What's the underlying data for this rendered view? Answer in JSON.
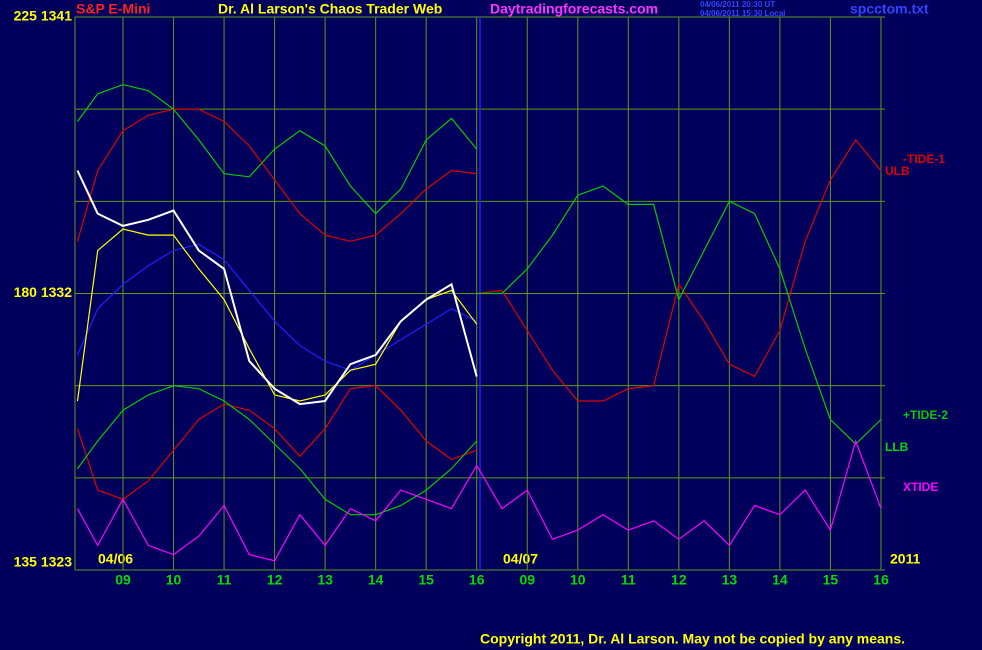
{
  "chart_data": {
    "type": "line",
    "symbol": "S&P E-Mini",
    "title": "Dr. Al Larson's Chaos Trader Web",
    "site": "Daytradingforecasts.com",
    "timestamps": [
      "04/06/2011 20:30 UT",
      "04/06/2011 15:30 Local"
    ],
    "file": "spcctom.txt",
    "copyright": "Copyright 2011, Dr. Al Larson. May not be copied by any means.",
    "annotations": [
      "04/06",
      "04/07",
      "2011"
    ],
    "background": "#00005c",
    "grid": true,
    "grid_color": "#5e9a14",
    "xlim": [
      0.05,
      16.08
    ],
    "ylim": [
      1323,
      1341
    ],
    "xticks": [
      {
        "value": 1,
        "label": "09"
      },
      {
        "value": 2,
        "label": "10"
      },
      {
        "value": 3,
        "label": "11"
      },
      {
        "value": 4,
        "label": "12"
      },
      {
        "value": 5,
        "label": "13"
      },
      {
        "value": 6,
        "label": "14"
      },
      {
        "value": 7,
        "label": "15"
      },
      {
        "value": 8,
        "label": "16"
      },
      {
        "value": 9,
        "label": "09"
      },
      {
        "value": 10,
        "label": "10"
      },
      {
        "value": 11,
        "label": "11"
      },
      {
        "value": 12,
        "label": "12"
      },
      {
        "value": 13,
        "label": "13"
      },
      {
        "value": 14,
        "label": "14"
      },
      {
        "value": 15,
        "label": "15"
      },
      {
        "value": 16,
        "label": "16"
      }
    ],
    "yticks": [
      {
        "value": 1341,
        "label": "225  1341"
      },
      {
        "value": 1332,
        "label": "180  1332"
      },
      {
        "value": 1323,
        "label": "135  1323"
      }
    ],
    "ygrid": [
      1338,
      1335,
      1329,
      1326
    ],
    "x": [
      0.1,
      0.5,
      1,
      1.5,
      2,
      2.5,
      3,
      3.5,
      4,
      4.5,
      5,
      5.5,
      6,
      6.5,
      7,
      7.5,
      8,
      8.5,
      9,
      9.5,
      10,
      10.5,
      11,
      11.5,
      12,
      12.5,
      13,
      13.5,
      14,
      14.5,
      15,
      15.5,
      16
    ],
    "series": [
      {
        "name": "ULB",
        "color": "#e00000",
        "values": [
          1333.7,
          1336.0,
          1337.3,
          1337.8,
          1338.0,
          1338.0,
          1337.6,
          1336.8,
          1335.7,
          1334.6,
          1333.9,
          1333.7,
          1333.9,
          1334.6,
          1335.4,
          1336.0,
          1335.9,
          null,
          null,
          null,
          null,
          null,
          null,
          null,
          null,
          null,
          null,
          null,
          null,
          null,
          null,
          null,
          null
        ]
      },
      {
        "color": "#e00000",
        "values": [
          1327.6,
          1325.6,
          1325.3,
          1325.9,
          1326.9,
          1327.9,
          1328.4,
          1328.2,
          1327.6,
          1326.7,
          1327.6,
          1328.9,
          1329.0,
          1328.2,
          1327.2,
          1326.6,
          1326.9,
          null,
          null,
          null,
          null,
          null,
          null,
          null,
          null,
          null,
          null,
          null,
          null,
          null,
          null,
          null,
          null
        ]
      },
      {
        "color": "#00cc00",
        "values": [
          1337.6,
          1338.5,
          1338.8,
          1338.6,
          1338.0,
          1337.0,
          1335.9,
          1335.8,
          1336.7,
          1337.3,
          1336.8,
          1335.5,
          1334.6,
          1335.4,
          1337.0,
          1337.7,
          1336.7,
          null,
          null,
          null,
          null,
          null,
          null,
          null,
          null,
          null,
          null,
          null,
          null,
          null,
          null,
          null,
          null
        ]
      },
      {
        "name": "LLB",
        "color": "#00cc00",
        "values": [
          1326.3,
          1327.2,
          1328.2,
          1328.7,
          1329.0,
          1328.9,
          1328.5,
          1327.9,
          1327.1,
          1326.3,
          1325.3,
          1324.8,
          1324.8,
          1325.1,
          1325.6,
          1326.3,
          1327.2,
          null,
          null,
          null,
          null,
          null,
          null,
          null,
          null,
          null,
          null,
          null,
          null,
          null,
          null,
          null,
          null
        ]
      },
      {
        "name": "-TIDE-1",
        "color": "#e00000",
        "values": [
          null,
          null,
          null,
          null,
          null,
          null,
          null,
          null,
          null,
          null,
          null,
          null,
          null,
          null,
          null,
          null,
          1332.0,
          1332.1,
          1330.8,
          1329.5,
          1328.5,
          1328.5,
          1328.9,
          1329.0,
          1332.3,
          1331.1,
          1329.7,
          1329.3,
          1330.8,
          1333.7,
          1335.7,
          1337.0,
          1336.0
        ]
      },
      {
        "name": "+TIDE-2",
        "color": "#00cc00",
        "values": [
          null,
          null,
          null,
          null,
          null,
          null,
          null,
          null,
          null,
          null,
          null,
          null,
          null,
          null,
          null,
          null,
          1332.0,
          1332.0,
          1332.8,
          1333.9,
          1335.2,
          1335.5,
          1334.9,
          1334.9,
          1331.8,
          1333.4,
          1335.0,
          1334.6,
          1332.8,
          1330.2,
          1327.9,
          1327.1,
          1327.9
        ]
      },
      {
        "name": "XTIDE",
        "color": "#ff00ff",
        "values": [
          1325.0,
          1323.8,
          1325.3,
          1323.8,
          1323.5,
          1324.1,
          1325.1,
          1323.5,
          1323.3,
          1324.8,
          1323.8,
          1325.0,
          1324.6,
          1325.6,
          1325.3,
          1325.0,
          1326.4,
          1325.0,
          1325.6,
          1324.0,
          1324.3,
          1324.8,
          1324.3,
          1324.6,
          1324.0,
          1324.6,
          1323.8,
          1325.1,
          1324.8,
          1325.6,
          1324.3,
          1327.2,
          1325.0
        ]
      },
      {
        "color": "#2020ff",
        "values": [
          1330.0,
          1331.5,
          1332.3,
          1332.9,
          1333.4,
          1333.6,
          1333.1,
          1332.1,
          1331.1,
          1330.3,
          1329.8,
          1329.5,
          1330.0,
          1330.5,
          1331.0,
          1331.5,
          1331.1,
          null,
          null,
          null,
          null,
          null,
          null,
          null,
          null,
          null,
          null,
          null,
          null,
          null,
          null,
          null,
          null
        ]
      },
      {
        "color": "#ffff00",
        "values": [
          1328.5,
          1333.4,
          1334.1,
          1333.9,
          1333.9,
          1332.8,
          1331.8,
          1330.2,
          1328.7,
          1328.5,
          1328.7,
          1329.5,
          1329.7,
          1331.1,
          1331.8,
          1332.1,
          1331.0,
          null,
          null,
          null,
          null,
          null,
          null,
          null,
          null,
          null,
          null,
          null,
          null,
          null,
          null,
          null,
          null
        ]
      },
      {
        "color": "#ffffff",
        "values": [
          1336.0,
          1334.6,
          1334.2,
          1334.4,
          1334.7,
          1333.4,
          1332.8,
          1329.8,
          1328.9,
          1328.4,
          1328.5,
          1329.7,
          1330.0,
          1331.1,
          1331.8,
          1332.3,
          1329.3,
          null,
          null,
          null,
          null,
          null,
          null,
          null,
          null,
          null,
          null,
          null,
          null,
          null,
          null,
          null,
          null
        ]
      }
    ]
  }
}
